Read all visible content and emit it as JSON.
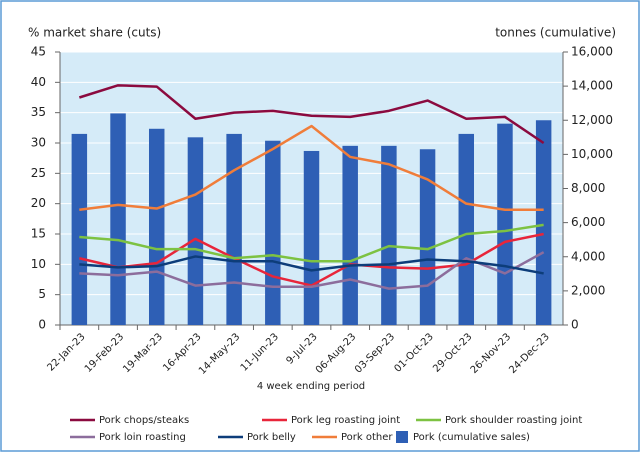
{
  "chart_data": {
    "type": "combo",
    "y_label": "% market share (cuts)",
    "y2_label": "tonnes (cumulative)",
    "x_label": "4 week ending period",
    "categories": [
      "22-Jan-23",
      "19-Feb-23",
      "19-Mar-23",
      "16-Apr-23",
      "14-May-23",
      "11-Jun-23",
      "9-Jul-23",
      "06-Aug-23",
      "03-Sep-23",
      "01-Oct-23",
      "29-Oct-23",
      "26-Nov-23",
      "24-Dec-23"
    ],
    "ylim": [
      0,
      45
    ],
    "yticks": [
      0,
      5,
      10,
      15,
      20,
      25,
      30,
      35,
      40,
      45
    ],
    "y2lim": [
      0,
      16000
    ],
    "y2ticks": [
      0,
      {
        "value": 2000,
        "label": "2,000"
      },
      {
        "value": 4000,
        "label": "4,000"
      },
      {
        "value": 6000,
        "label": "6,000"
      },
      {
        "value": 8000,
        "label": "8,000"
      },
      {
        "value": 10000,
        "label": "10,000"
      },
      {
        "value": 12000,
        "label": "12,000"
      },
      {
        "value": 14000,
        "label": "14,000"
      },
      {
        "value": 16000,
        "label": "16,000"
      }
    ],
    "grid": true,
    "legend": "bottom",
    "series": [
      {
        "name": "Pork chops/steaks",
        "type": "line",
        "color": "#8b0a3f",
        "values": [
          37.5,
          39.5,
          39.3,
          34,
          35,
          35.3,
          34.5,
          34.3,
          35.3,
          37,
          34,
          34.3,
          30
        ]
      },
      {
        "name": "Pork leg roasting joint",
        "type": "line",
        "color": "#e8253a",
        "values": [
          11,
          9.5,
          10.2,
          14.2,
          11,
          8,
          6.5,
          10,
          9.5,
          9.3,
          10,
          13.7,
          15
        ]
      },
      {
        "name": "Pork shoulder roasting joint",
        "type": "line",
        "color": "#7dc242",
        "values": [
          14.5,
          14,
          12.5,
          12.5,
          11,
          11.5,
          10.5,
          10.5,
          13,
          12.5,
          15,
          15.5,
          16.5
        ]
      },
      {
        "name": "Pork loin roasting",
        "type": "line",
        "color": "#8c6d9c",
        "values": [
          8.5,
          8.2,
          8.8,
          6.5,
          7,
          6.3,
          6.3,
          7.5,
          6,
          6.5,
          11,
          8.5,
          12
        ]
      },
      {
        "name": "Pork belly",
        "type": "line",
        "color": "#0d3d7a",
        "values": [
          10,
          9.5,
          9.7,
          11.3,
          10.5,
          10.5,
          9,
          9.8,
          10,
          10.8,
          10.5,
          9.7,
          8.5
        ]
      },
      {
        "name": "Pork other",
        "type": "line",
        "color": "#f07d3a",
        "values": [
          19,
          19.8,
          19.2,
          21.5,
          25.5,
          29,
          32.8,
          27.7,
          26.5,
          24,
          20,
          19,
          19
        ]
      },
      {
        "name": "Pork (cumulative sales)",
        "type": "bar",
        "axis": "y2",
        "color": "#2e5fb5",
        "values": [
          11200,
          12400,
          11500,
          11000,
          11200,
          10800,
          10200,
          10500,
          10500,
          10300,
          11200,
          11800,
          12000
        ]
      }
    ]
  }
}
